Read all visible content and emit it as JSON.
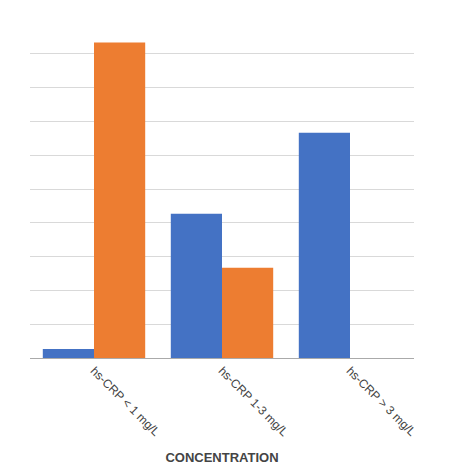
{
  "chart_data": {
    "type": "bar",
    "categories": [
      "hs-CRP < 1 mg/L",
      "hs-CRP 1-3 mg/L",
      "hs-CRP > 3 mg/L"
    ],
    "series": [
      {
        "color": "#4472C4",
        "values": [
          2,
          32,
          50
        ]
      },
      {
        "color": "#ED7D31",
        "values": [
          70,
          20,
          0
        ]
      }
    ],
    "xlabel": "CONCENTRATION",
    "ylim": [
      0,
      75
    ],
    "yticks": [
      0,
      7.5,
      15,
      22.5,
      30,
      37.5,
      45,
      52.5,
      60,
      67.5,
      75
    ],
    "grid": true,
    "tick_labels": "x"
  }
}
